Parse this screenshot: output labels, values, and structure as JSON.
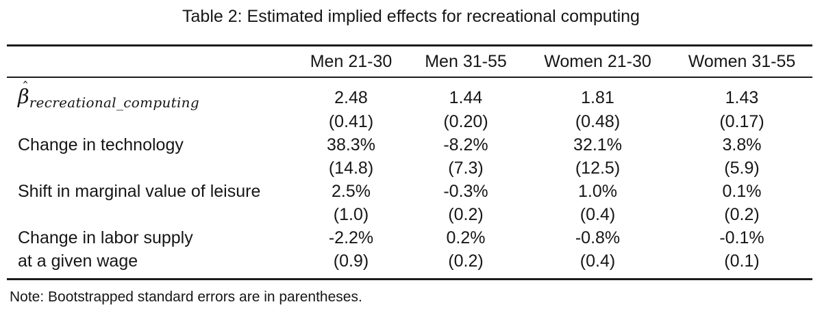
{
  "page": {
    "title": "Table 2: Estimated implied effects for recreational computing",
    "note": "Note: Bootstrapped standard errors are in parentheses."
  },
  "colors": {
    "background": "#ffffff",
    "text": "#161616",
    "rule": "#1a1a1a"
  },
  "beta": {
    "symbol": "β",
    "hat": "ˆ",
    "subscript": "recreational_computing"
  },
  "table": {
    "column_headers": [
      "Men 21-30",
      "Men 31-55",
      "Women 21-30",
      "Women 31-55"
    ],
    "rows": [
      {
        "label": "",
        "values": [
          "2.48",
          "1.44",
          "1.81",
          "1.43"
        ]
      },
      {
        "label": "",
        "values": [
          "(0.41)",
          "(0.20)",
          "(0.48)",
          "(0.17)"
        ]
      },
      {
        "label": "Change in technology",
        "values": [
          "38.3%",
          "-8.2%",
          "32.1%",
          "3.8%"
        ]
      },
      {
        "label": "",
        "values": [
          "(14.8)",
          "(7.3)",
          "(12.5)",
          "(5.9)"
        ]
      },
      {
        "label": "Shift in marginal value of leisure",
        "values": [
          "2.5%",
          "-0.3%",
          "1.0%",
          "0.1%"
        ]
      },
      {
        "label": "",
        "values": [
          "(1.0)",
          "(0.2)",
          "(0.4)",
          "(0.2)"
        ]
      },
      {
        "label": "Change in labor supply",
        "values": [
          "-2.2%",
          "0.2%",
          "-0.8%",
          "-0.1%"
        ]
      },
      {
        "label": "at a given wage",
        "values": [
          "(0.9)",
          "(0.2)",
          "(0.4)",
          "(0.1)"
        ]
      }
    ]
  }
}
